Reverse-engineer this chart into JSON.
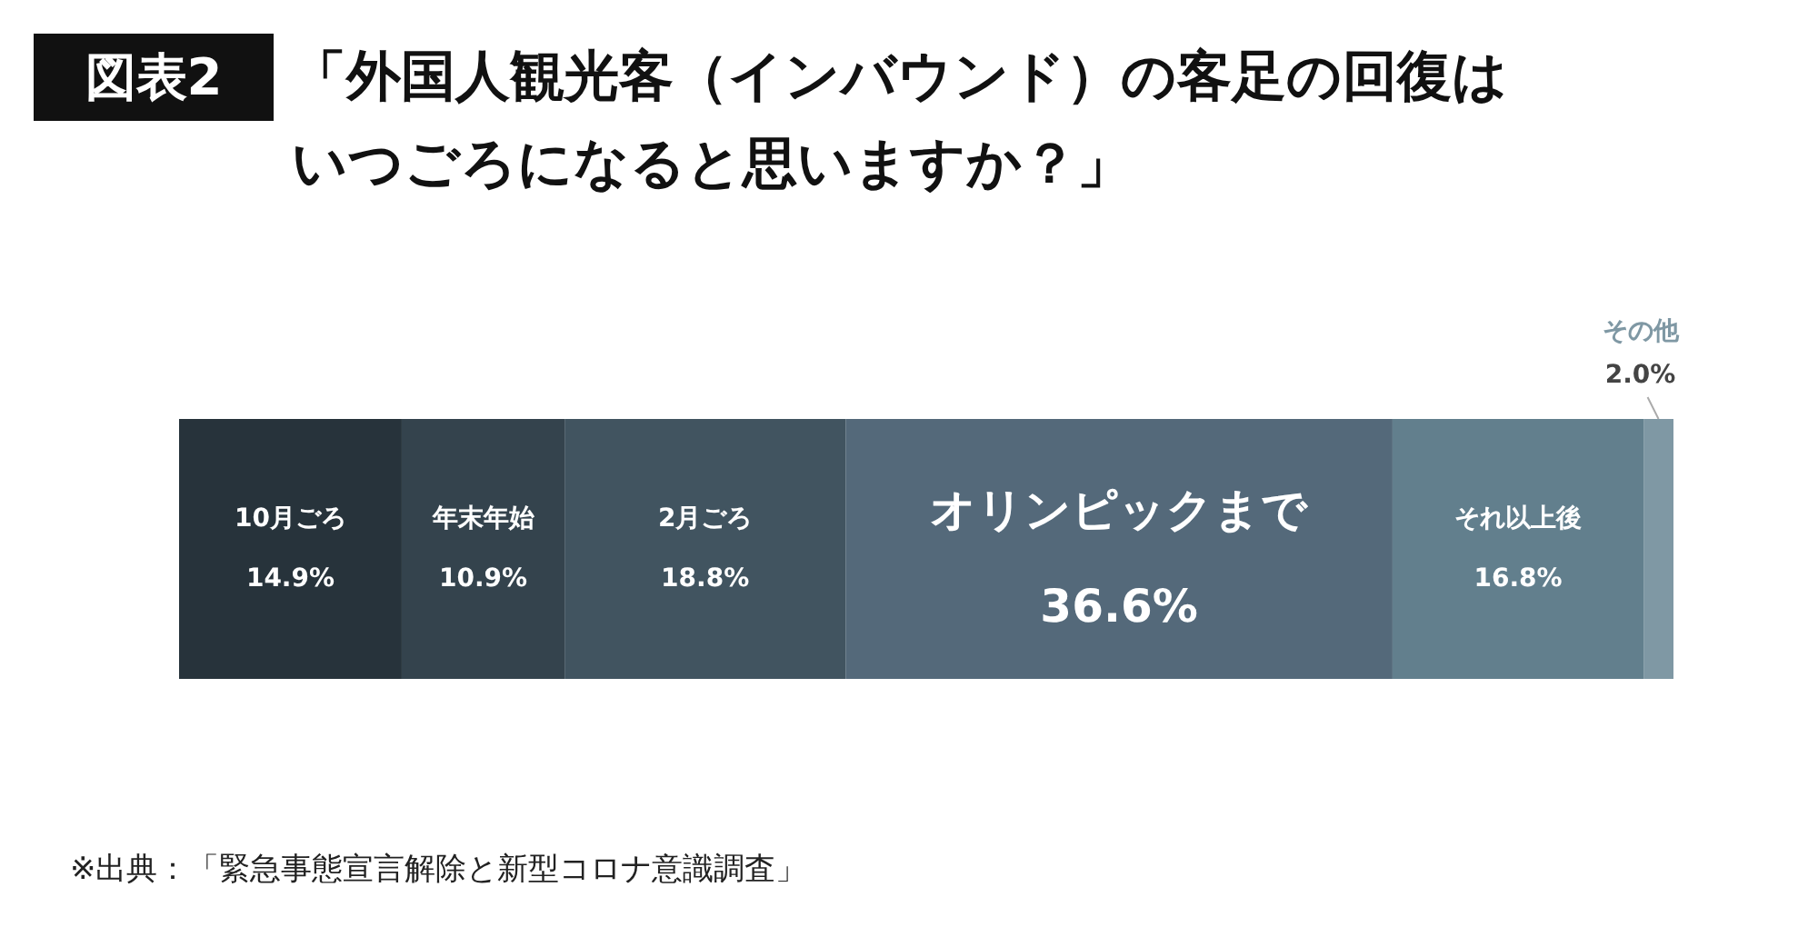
{
  "chart_data": {
    "type": "bar",
    "title": "「外国人観光客（インバウンド）の客足の回復はいつごろになると思いますか？」",
    "annotations": [
      "図表2",
      "※出典：「緊急事態宣言解除と新型コロナ意識調査」"
    ],
    "categories": [
      null
    ],
    "stacked": true,
    "orientation": "horizontal",
    "series": [
      {
        "name": "10月ごろ",
        "color": "#27333b",
        "values": [
          14.9
        ],
        "value_labels": [
          "14.9%"
        ]
      },
      {
        "name": "年末年始",
        "color": "#34434d",
        "values": [
          10.9
        ],
        "value_labels": [
          "10.9%"
        ]
      },
      {
        "name": "2月ごろ",
        "color": "#415460",
        "values": [
          18.8
        ],
        "value_labels": [
          "18.8%"
        ]
      },
      {
        "name": "オリンピックまで",
        "color": "#54697a",
        "values": [
          36.6
        ],
        "value_labels": [
          "36.6%"
        ]
      },
      {
        "name": "それ以上後",
        "color": "#627f8d",
        "values": [
          16.8
        ],
        "value_labels": [
          "16.8%"
        ]
      },
      {
        "name": "その他",
        "color": "#7f98a4",
        "values": [
          2.0
        ],
        "value_labels": [
          "2.0%"
        ]
      }
    ]
  }
}
